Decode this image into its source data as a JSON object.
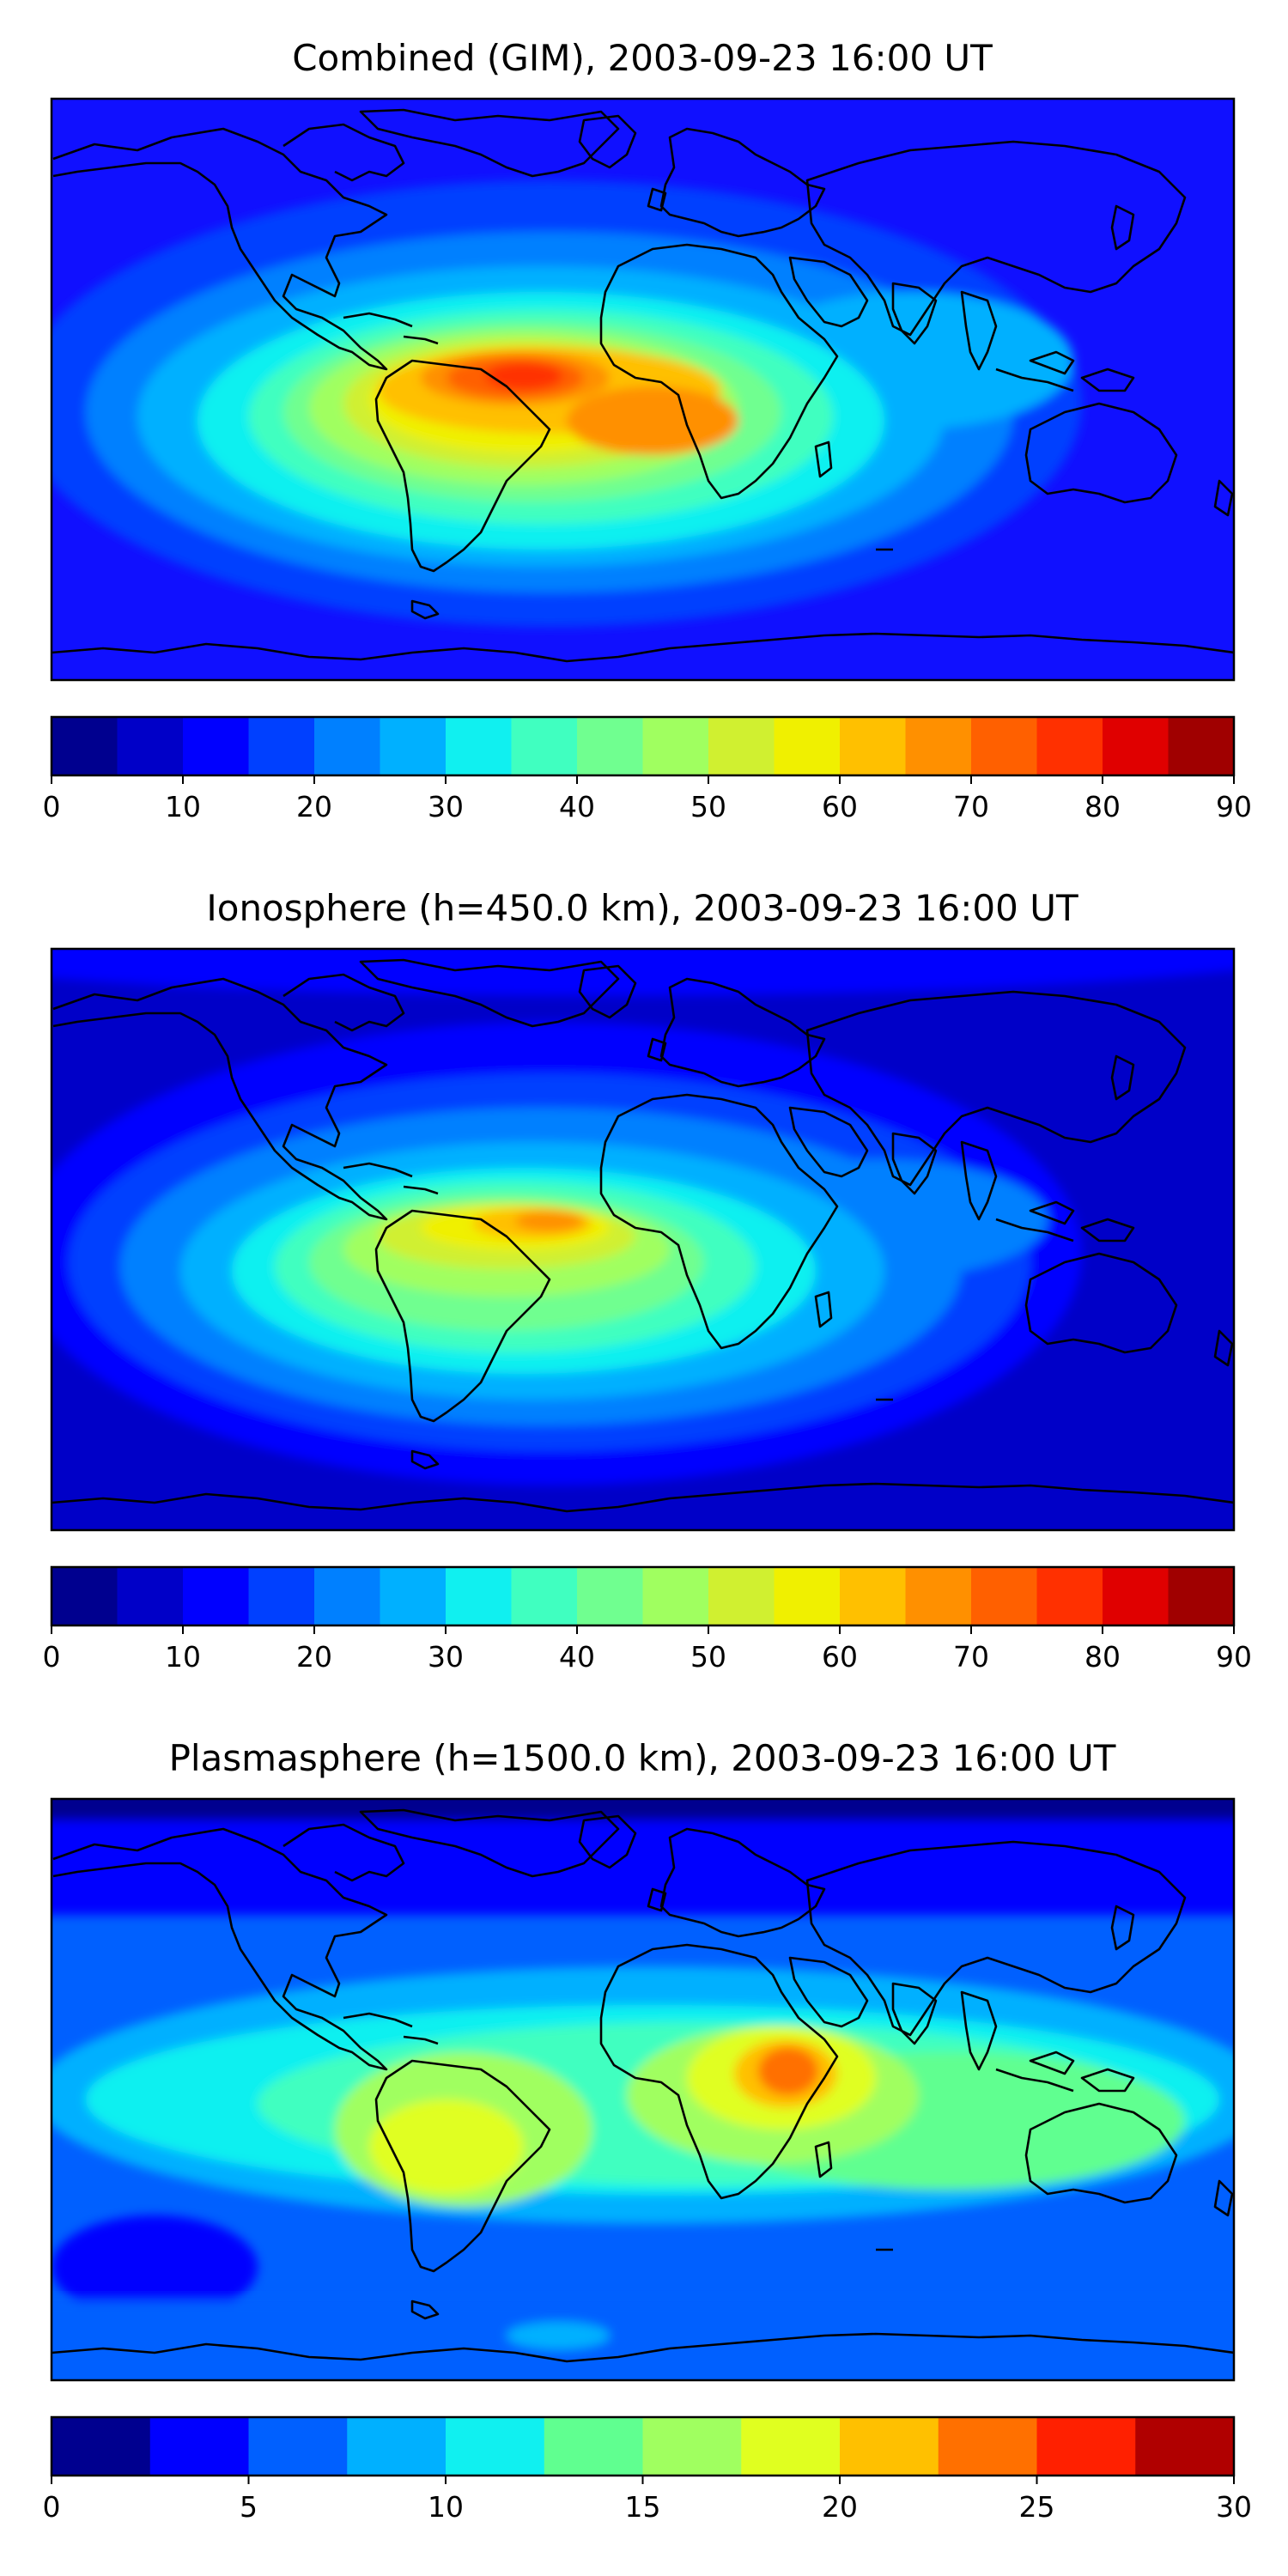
{
  "figure": {
    "panels": [
      {
        "id": "combined",
        "title": "Combined (GIM), 2003-09-23 16:00 UT",
        "colorbar": {
          "min": 0,
          "max": 90,
          "step": 5,
          "ticks": [
            "0",
            "10",
            "20",
            "30",
            "40",
            "50",
            "60",
            "70",
            "80",
            "90"
          ],
          "colors": [
            "#00008f",
            "#0000c8",
            "#0000ff",
            "#0040ff",
            "#0080ff",
            "#00b0ff",
            "#10f0f0",
            "#40ffc0",
            "#70ff90",
            "#a0ff60",
            "#d0f030",
            "#f0f000",
            "#ffc000",
            "#ff9000",
            "#ff6000",
            "#ff3000",
            "#e00000",
            "#a00000"
          ]
        },
        "background_color": "#1010ff",
        "anomaly_blobs": [
          {
            "location": "Atlantic / Africa equatorial anomaly (broad)",
            "value": 35
          },
          {
            "location": "tropical Atlantic",
            "value": 45
          },
          {
            "location": "northern South America – Africa",
            "value": 55
          },
          {
            "location": "north of Brazil",
            "value": 65
          },
          {
            "location": "Gulf of Guinea / central Africa",
            "value": 65
          },
          {
            "location": "northern South America peak",
            "value": 75
          },
          {
            "location": "Indian Ocean / Southeast Asia extension",
            "value": 25
          }
        ]
      },
      {
        "id": "ionosphere",
        "title": "Ionosphere  (h=450.0 km), 2003-09-23 16:00 UT",
        "colorbar": {
          "min": 0,
          "max": 90,
          "step": 5,
          "ticks": [
            "0",
            "10",
            "20",
            "30",
            "40",
            "50",
            "60",
            "70",
            "80",
            "90"
          ],
          "colors": [
            "#00008f",
            "#0000c8",
            "#0000ff",
            "#0040ff",
            "#0080ff",
            "#00b0ff",
            "#10f0f0",
            "#40ffc0",
            "#70ff90",
            "#a0ff60",
            "#d0f030",
            "#f0f000",
            "#ffc000",
            "#ff9000",
            "#ff6000",
            "#ff3000",
            "#e00000",
            "#a00000"
          ]
        },
        "background_color": "#0000c8",
        "anomaly_blobs": [
          {
            "location": "Atlantic / Africa equatorial anomaly (broad)",
            "value": 25
          },
          {
            "location": "tropical Atlantic",
            "value": 35
          },
          {
            "location": "northern South America – West Africa",
            "value": 45
          },
          {
            "location": "north of Brazil",
            "value": 55
          },
          {
            "location": "equatorial Atlantic peak",
            "value": 65
          },
          {
            "location": "Indian Ocean extension",
            "value": 15
          }
        ]
      },
      {
        "id": "plasmasphere",
        "title": "Plasmasphere (h=1500.0 km), 2003-09-23 16:00 UT",
        "colorbar": {
          "min": 0,
          "max": 30,
          "step": 2.5,
          "ticks": [
            "0",
            "5",
            "10",
            "15",
            "20",
            "25",
            "30"
          ],
          "colors": [
            "#00008f",
            "#0000ff",
            "#0060ff",
            "#00b0ff",
            "#10f0f0",
            "#60ff90",
            "#a0ff60",
            "#e0ff20",
            "#ffc000",
            "#ff7000",
            "#ff2000",
            "#b00000"
          ]
        },
        "background_color": "#0060ff",
        "anomaly_blobs": [
          {
            "location": "low latitude band",
            "value": 10
          },
          {
            "location": "South America / Africa / Indian Ocean",
            "value": 12.5
          },
          {
            "location": "South America interior",
            "value": 17.5
          },
          {
            "location": "Indian Ocean / Maritime Continent",
            "value": 15
          },
          {
            "location": "Horn of Africa / Arabian Sea",
            "value": 20
          },
          {
            "location": "East Africa peak",
            "value": 22.5
          },
          {
            "location": "polar regions",
            "value": 2.5
          }
        ]
      }
    ]
  }
}
